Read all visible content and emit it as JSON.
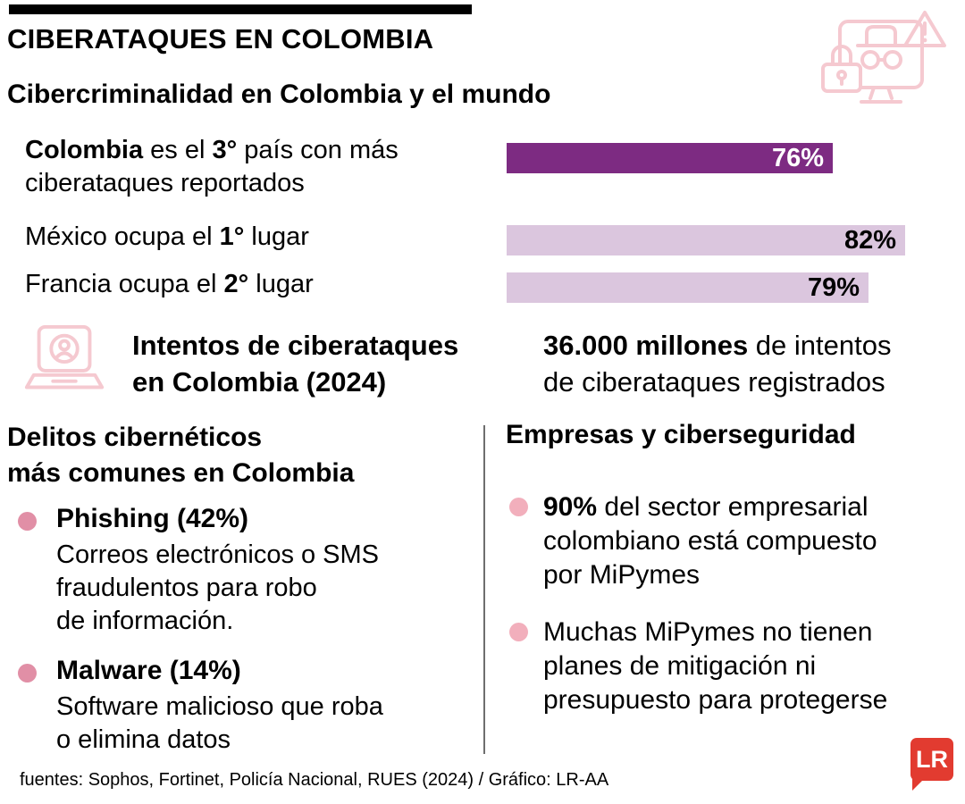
{
  "colors": {
    "bar_dark": "#7d2b82",
    "bar_light": "#dbc6de",
    "bullet_left": "#e18fa6",
    "bullet_right": "#f2afbc",
    "icon_pink": "#f5c9d0",
    "logo_red": "#e23b30",
    "divider": "#6e6e6e",
    "text": "#000000"
  },
  "header": {
    "title": "CIBERATAQUES EN COLOMBIA",
    "subtitle": "Cibercriminalidad en Colombia y el mundo"
  },
  "chart_data": {
    "type": "bar",
    "orientation": "horizontal",
    "title": "Cibercriminalidad en Colombia y el mundo",
    "categories": [
      "Colombia",
      "México",
      "Francia"
    ],
    "values": [
      76,
      82,
      79
    ],
    "value_labels": [
      "76%",
      "82%",
      "79%"
    ],
    "xlim": [
      0,
      100
    ],
    "grid": false,
    "legend": false,
    "bar_colors": [
      "#7d2b82",
      "#dbc6de",
      "#dbc6de"
    ],
    "value_label_colors": [
      "#ffffff",
      "#000000",
      "#000000"
    ],
    "rows": [
      {
        "bold_start": "Colombia",
        "text_mid": " es el ",
        "bold_rank": "3°",
        "text_end": " país con más",
        "line2": "ciberataques reportados"
      },
      {
        "text_start": "México ocupa el ",
        "bold_rank": "1°",
        "text_end": " lugar"
      },
      {
        "text_start": "Francia ocupa el ",
        "bold_rank": "2°",
        "text_end": " lugar"
      }
    ]
  },
  "intentos": {
    "title_line1": "Intentos de ciberataques",
    "title_line2": "en Colombia (2024)",
    "stat_bold": "36.000 millones",
    "stat_after": " de intentos",
    "stat_line2": "de ciberataques registrados"
  },
  "delitos": {
    "heading_line1": "Delitos cibernéticos",
    "heading_line2": "más comunes en Colombia",
    "items": [
      {
        "title": "Phishing (42%)",
        "desc_line1": "Correos electrónicos o SMS",
        "desc_line2": "fraudulentos para robo",
        "desc_line3": "de información."
      },
      {
        "title": "Malware (14%)",
        "desc_line1": "Software malicioso que roba",
        "desc_line2": "o elimina datos"
      }
    ]
  },
  "empresas": {
    "heading": "Empresas y ciberseguridad",
    "items": [
      {
        "bold": "90%",
        "line1_rest": " del sector empresarial",
        "line2": "colombiano está compuesto",
        "line3": "por MiPymes"
      },
      {
        "line1": "Muchas MiPymes no tienen",
        "line2": "planes de mitigación ni",
        "line3": "presupuesto para protegerse"
      }
    ]
  },
  "footer": {
    "sources": "fuentes: Sophos, Fortinet, Policía Nacional, RUES (2024) / Gráfico: LR-AA",
    "logo_text": "LR"
  },
  "icons": {
    "top_right": "hacker-computer-icon",
    "middle_left": "hacker-laptop-icon"
  }
}
